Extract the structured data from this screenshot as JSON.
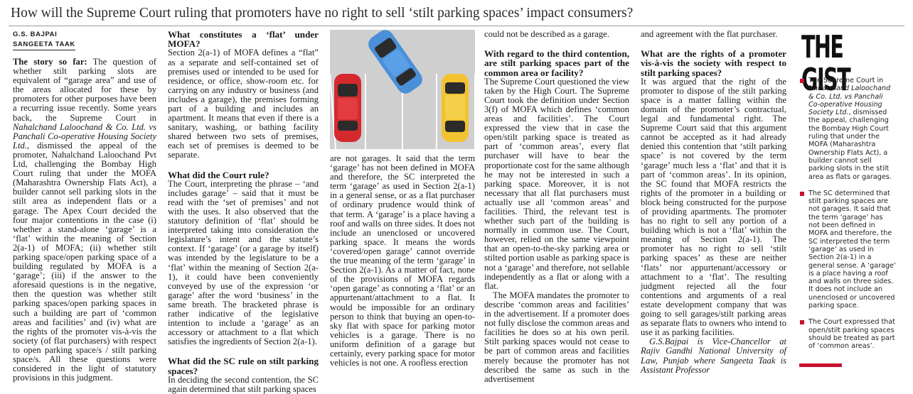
{
  "headline": "How will the Supreme Court ruling that promoters have no right to sell ‘stilt parking spaces’ impact consumers?",
  "byline": {
    "author1": "G.S. BAJPAI",
    "author2": "SANGEETA TAAK"
  },
  "col1": {
    "lead_label": "The story so far:",
    "p1_a": " The question of whether stilt parking slots are equivalent of “garage area” and use of the areas allocated for these by promoters for other purposes have been a recurring issue recently. Some years back, the Supreme Court in ",
    "p1_i1": "Nahalchand Laloochand & Co. Ltd. vs Panchali Co-operative Housing Society Ltd.",
    "p1_b": ", dismissed the appeal of the promoter, Nahalchand Laloochand Pvt Ltd, challenging the Bombay High Court ruling that under the MOFA (Maharashtra Ownership Flats Act), a builder cannot sell parking slots in the stilt area as independent flats or a garage. The Apex Court decided the four major contentions in the case (i) whether a stand-alone ‘garage’ is a ‘flat’ within the meaning of Section 2(a-1) of MOFA; (ii) whether stilt parking space/open parking space of a building regulated by MOFA is a ‘garage’; (iii) if the answer to the aforesaid questions is in the negative, then the question was whether stilt parking spaces/open parking spaces in such a building are part of ‘common areas and facilities’ and (iv) what are the rights of the promoter vis-à-vis the society (of flat purchasers) with respect to open parking space/s / stilt parking space/s. All these questions were considered in the light of statutory provisions in this judgment."
  },
  "col2": {
    "h1": "What constitutes a ‘flat’ under MOFA?",
    "p1": "Section 2(a-1) of MOFA defines a “flat” as a separate and self-contained set of premises used or intended to be used for residence, or office, show-room etc. for carrying on any industry or business (and includes a garage), the premises forming part of a building and includes an apartment. It means that even if there is a sanitary, washing, or bathing facility shared between two sets of premises, each set of premises is deemed to be separate.",
    "h2": "What did the Court rule?",
    "p2": "The Court, interpreting the phrase – ‘and includes garage’ – said that it must be read with the ‘set of premises’ and not with the uses. It also observed that the statutory definition of ‘flat’ should be interpreted taking into consideration the legislature’s intent and the statute’s context. If ‘garage’ (or a garage by itself) was intended by the legislature to be a ‘flat’ within the meaning of Section 2(a-1), it could have been conveniently conveyed by use of the expression ‘or garage’ after the word ‘business’ in the same breath. The bracketed phrase is rather indicative of the legislative intention to include a ‘garage’ as an accessory or attachment to a flat which satisfies the ingredients of Section 2(a-1).",
    "h3": "What did the SC rule on stilt parking spaces?",
    "p3": "In deciding the second contention, the SC again determined that stilt parking spaces"
  },
  "col3": {
    "p1": "are not garages. It said that the term ‘garage’ has not been defined in MOFA and therefore, the SC interpreted the term ‘garage’ as used in Section 2(a-1) in a general sense, or as a flat purchaser of ordinary prudence would think of that term. A ‘garage’ is a place having a roof and walls on three sides. It does not include an unenclosed or uncovered parking space. It means the words ‘covered/open garage’ cannot override the true meaning of the term ‘garage’ in Section 2(a-1). As a matter of fact, none of the provisions of MOFA regards ‘open garage’ as connoting a ‘flat’ or an appurtenant/attachment to a flat. It would be impossible for an ordinary person to think that buying an open-to-sky flat with space for parking motor vehicles is a garage. There is no uniform definition of a garage but certainly, every parking space for motor vehicles is not one. A roofless erection"
  },
  "col4": {
    "p0": "could not be described as a garage.",
    "h1": "With regard to the third contention, are stilt parking spaces part of the common area or facility?",
    "p1": "The Supreme Court questioned the view taken by the High Court. The Supreme Court took the definition under Section 3(f) of MOFA which defines ‘common areas and facilities’. The Court expressed the view that in case the open/stilt parking space is treated as part of ‘common areas’, every flat purchaser will have to bear the proportionate cost for the same although he may not be interested in such a parking space. Moreover, it is not necessary that all flat purchasers must actually use all ‘common areas’ and facilities. Third, the relevant test is whether such part of the building is normally in common use. The Court, however, relied on the same viewpoint that an open-to-the-sky parking area or stilted portion usable as parking space is not a ‘garage’ and therefore, not sellable independently as a flat or along with a flat.",
    "p2": "The MOFA mandates the promoter to describe ‘common areas and facilities’ in the advertisement. If a promoter does not fully disclose the common areas and facilities he does so at his own peril. Stilt parking spaces would not cease to be part of common areas and facilities merely because the promoter has not described the same as such in the advertisement"
  },
  "col5": {
    "p0": "and agreement with the flat purchaser.",
    "h1": "What are the rights of a promoter vis-à-vis the society with respect to stilt parking spaces?",
    "p1": "It was argued that the right of the promoter to dispose of the stilt parking space is a matter falling within the domain of the promoter’s contractual, legal and fundamental right. The Supreme Court said that this argument cannot be accepted as it had already denied this contention that ‘stilt parking space’ is not covered by the term ‘garage’ much less a ‘flat’ and that it is part of ‘common areas’. In its opinion, the SC found that MOFA restricts the rights of the promoter in a building or block being constructed for the purpose of providing apartments. The promoter has no right to sell any portion of a building which is not a ‘flat’ within the meaning of Section 2(a-1). The promoter has no right to sell ‘stilt parking spaces’ as these are neither ‘flats’ nor appurtenant/accessory or attachment to a ‘flat’. The resulting judgment rejected all the four contentions and arguments of a real estate development company that was going to sell garages/stilt parking areas as separate flats to owners who intend to use it as parking facilities.",
    "p2": "G.S.Bajpai is Vice-Chancellor at Rajiv Gandhi National University of Law, Punjab where Sangeeta Taak is Assistant Professor"
  },
  "gist": {
    "title": "THE GIST",
    "item1_a": "The Supreme Court in ",
    "item1_i": "Nahalchand Laloochand & Co. Ltd. vs Panchali Co-operative Housing Society Ltd.",
    "item1_b": ", dismissed the appeal, challenging the Bombay High Court ruling that under the MOFA (Maharashtra Ownership Flats Act), a builder cannot sell parking slots in the stilt area as flats or garages.",
    "item2": "The SC determined that stilt parking spaces are not garages. It said that the term ‘garage’ has not been defined in MOFA and therefore, the SC interpreted the term ‘garage’ as used in Section 2(a-1) in a general sense. A ‘garage’ is a place having a roof and walls on three sides. It does not include an unenclosed or uncovered parking space.",
    "item3": "The Court expressed that open/stilt parking spaces should be treated as part of ‘common areas’."
  },
  "colors": {
    "accent_red": "#c8102e",
    "car_red": "#d42a2f",
    "car_blue": "#4a8fd8",
    "car_yellow": "#f2c230",
    "asphalt": "#cfcfcf"
  },
  "illustration": {
    "icon": "parking-lot-cars-illustration"
  }
}
